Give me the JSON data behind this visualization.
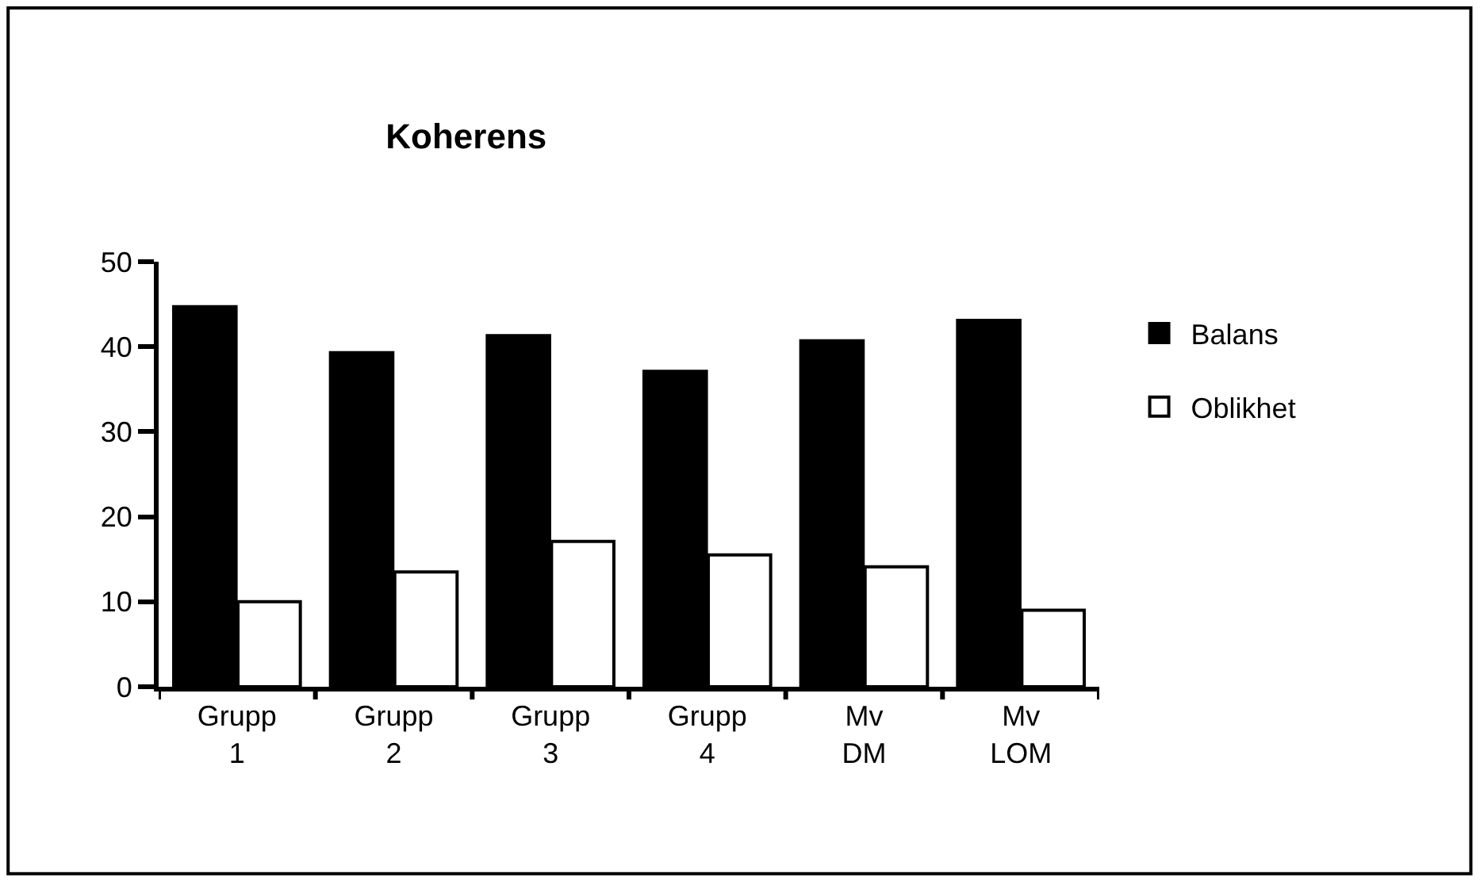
{
  "chart_data": {
    "type": "bar",
    "title": "Koherens",
    "categories": [
      "Grupp 1",
      "Grupp 2",
      "Grupp 3",
      "Grupp 4",
      "Mv DM",
      "Mv LOM"
    ],
    "series": [
      {
        "name": "Balans",
        "color": "#000000",
        "values": [
          44.7,
          39.3,
          41.3,
          37.1,
          40.7,
          43.1
        ]
      },
      {
        "name": "Oblikhet",
        "color": "#ffffff",
        "values": [
          10.0,
          13.5,
          17.1,
          15.5,
          14.1,
          9.0
        ]
      }
    ],
    "ylim": [
      0,
      50
    ],
    "yticks": [
      0,
      10,
      20,
      30,
      40,
      50
    ],
    "legend": "right"
  }
}
